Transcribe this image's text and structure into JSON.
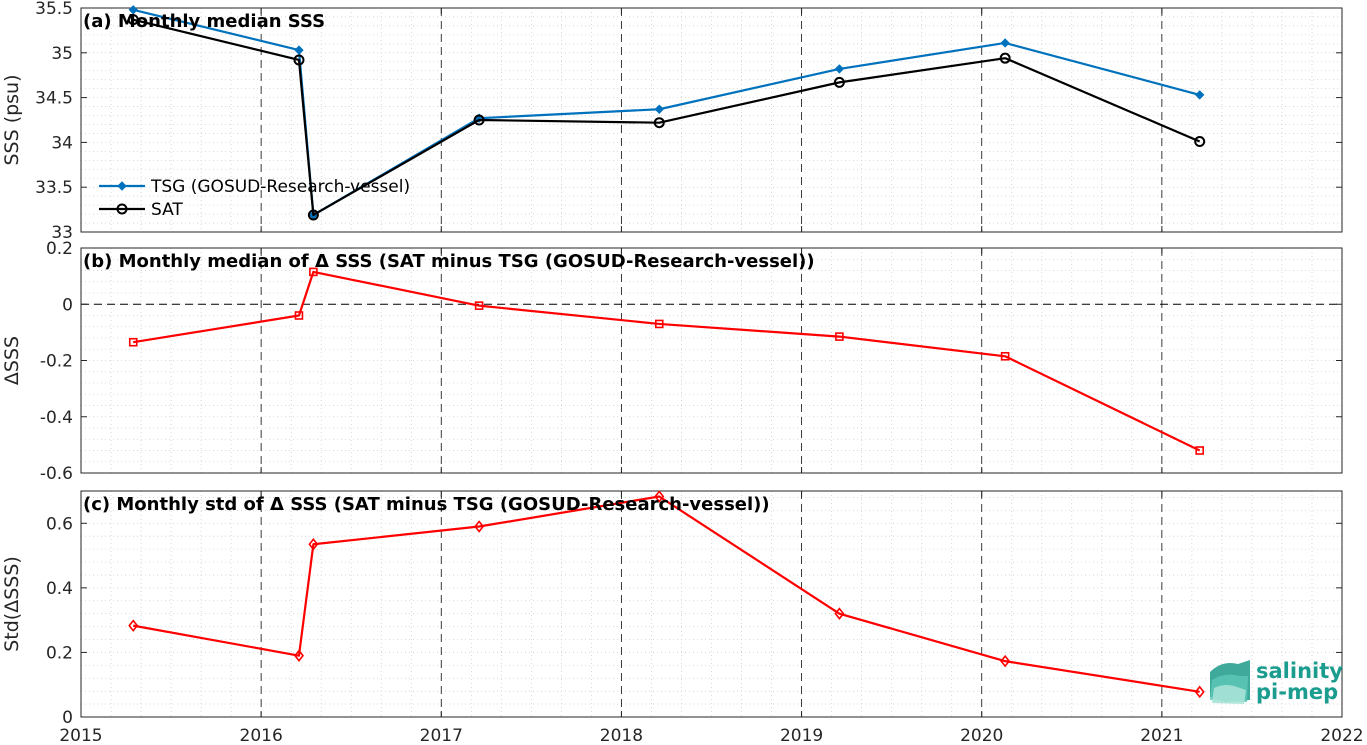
{
  "colors": {
    "tsg": "#0072bd",
    "sat": "#000000",
    "delta": "#ff0000",
    "zero_line": "#000000",
    "vgrid_dashed": "#000000",
    "grid_minor": "#d0d0d0",
    "logo": "#1a9c8e"
  },
  "logo": {
    "line1": "salinity",
    "line2": "pi-mep",
    "icon": "salinity-wave-icon"
  },
  "chart_data": [
    {
      "type": "line",
      "title": "(a) Monthly median SSS",
      "xlabel": "",
      "ylabel": "SSS (psu)",
      "xlim": [
        2015,
        2022
      ],
      "ylim": [
        33,
        35.5
      ],
      "yticks": [
        33,
        33.5,
        34,
        34.5,
        35,
        35.5
      ],
      "ytick_labels": [
        "33",
        "33.5",
        "34",
        "34.5",
        "35",
        "35.5"
      ],
      "grid": true,
      "legend": "bottom-left",
      "series": [
        {
          "name": "TSG (GOSUD-Research-vessel)",
          "marker": "diamond-filled",
          "x": [
            2015.29,
            2016.21,
            2016.29,
            2017.21,
            2018.21,
            2019.21,
            2020.13,
            2021.21
          ],
          "values": [
            35.48,
            35.03,
            33.19,
            34.27,
            34.37,
            34.82,
            35.11,
            34.53
          ]
        },
        {
          "name": "SAT",
          "marker": "circle-open",
          "x": [
            2015.29,
            2016.21,
            2016.29,
            2017.21,
            2018.21,
            2019.21,
            2020.13,
            2021.21
          ],
          "values": [
            35.37,
            34.92,
            33.19,
            34.25,
            34.22,
            34.67,
            34.94,
            34.01
          ]
        }
      ]
    },
    {
      "type": "line",
      "title": "(b) Monthly median of Δ SSS (SAT minus TSG (GOSUD-Research-vessel))",
      "xlabel": "",
      "ylabel": "ΔSSS",
      "xlim": [
        2015,
        2022
      ],
      "ylim": [
        -0.6,
        0.2
      ],
      "yticks": [
        -0.6,
        -0.4,
        -0.2,
        0,
        0.2
      ],
      "ytick_labels": [
        "-0.6",
        "-0.4",
        "-0.2",
        "0",
        "0.2"
      ],
      "grid": true,
      "series": [
        {
          "marker": "square-open",
          "x": [
            2015.29,
            2016.21,
            2016.29,
            2017.21,
            2018.21,
            2019.21,
            2020.13,
            2021.21
          ],
          "values": [
            -0.135,
            -0.04,
            0.115,
            -0.005,
            -0.07,
            -0.115,
            -0.185,
            -0.52
          ]
        }
      ]
    },
    {
      "type": "line",
      "title": "(c) Monthly std of Δ SSS (SAT minus TSG (GOSUD-Research-vessel))",
      "xlabel": "",
      "ylabel": "Std(ΔSSS)",
      "xlim": [
        2015,
        2022
      ],
      "ylim": [
        0,
        0.7
      ],
      "yticks": [
        0,
        0.2,
        0.4,
        0.6
      ],
      "ytick_labels": [
        "0",
        "0.2",
        "0.4",
        "0.6"
      ],
      "xticks": [
        2015,
        2016,
        2017,
        2018,
        2019,
        2020,
        2021,
        2022
      ],
      "xtick_labels": [
        "2015",
        "2016",
        "2017",
        "2018",
        "2019",
        "2020",
        "2021",
        "2022"
      ],
      "grid": true,
      "series": [
        {
          "marker": "diamond-open",
          "x": [
            2015.29,
            2016.21,
            2016.29,
            2017.21,
            2018.21,
            2019.21,
            2020.13,
            2021.21
          ],
          "values": [
            0.283,
            0.19,
            0.535,
            0.59,
            0.683,
            0.32,
            0.173,
            0.078
          ]
        }
      ]
    }
  ]
}
